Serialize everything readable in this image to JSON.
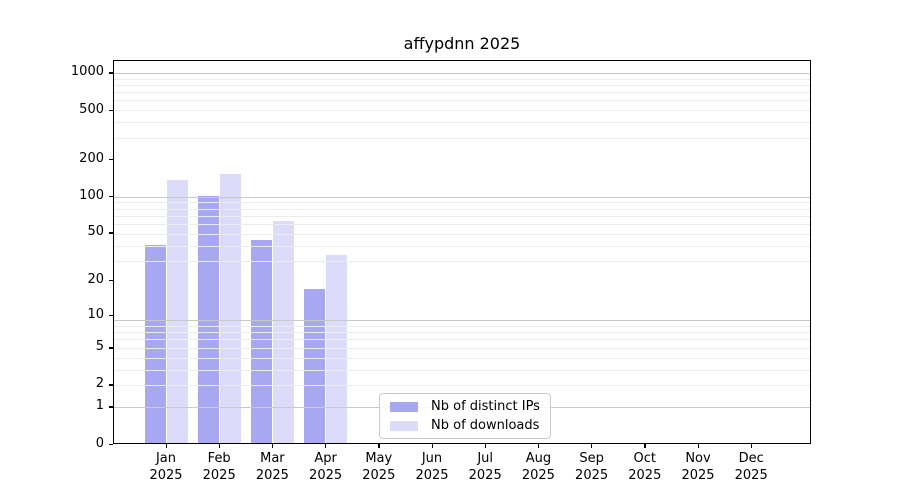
{
  "chart_data": {
    "type": "bar",
    "title": "affypdnn 2025",
    "categories": [
      {
        "line1": "Jan",
        "line2": "2025"
      },
      {
        "line1": "Feb",
        "line2": "2025"
      },
      {
        "line1": "Mar",
        "line2": "2025"
      },
      {
        "line1": "Apr",
        "line2": "2025"
      },
      {
        "line1": "May",
        "line2": "2025"
      },
      {
        "line1": "Jun",
        "line2": "2025"
      },
      {
        "line1": "Jul",
        "line2": "2025"
      },
      {
        "line1": "Aug",
        "line2": "2025"
      },
      {
        "line1": "Sep",
        "line2": "2025"
      },
      {
        "line1": "Oct",
        "line2": "2025"
      },
      {
        "line1": "Nov",
        "line2": "2025"
      },
      {
        "line1": "Dec",
        "line2": "2025"
      }
    ],
    "series": [
      {
        "name": "Nb of distinct IPs",
        "color": "#a8a8f2",
        "values": [
          40,
          100,
          44,
          17,
          0,
          0,
          0,
          0,
          0,
          0,
          0,
          0
        ]
      },
      {
        "name": "Nb of downloads",
        "color": "#dcdcfa",
        "values": [
          134,
          152,
          63,
          33,
          0,
          0,
          0,
          0,
          0,
          0,
          0,
          0
        ]
      }
    ],
    "yscale": "log10(v+1)",
    "yticks": [
      0,
      1,
      2,
      5,
      10,
      20,
      50,
      100,
      200,
      500,
      1000
    ],
    "ylim": [
      0,
      1270
    ],
    "xlabel": "",
    "ylabel": "",
    "grid": "on",
    "legend_position": "lower-center-inside",
    "colors": {
      "grid_major": "#c9c9c9",
      "grid_minor": "#ececec",
      "axis": "#000000",
      "background": "#ffffff"
    }
  }
}
